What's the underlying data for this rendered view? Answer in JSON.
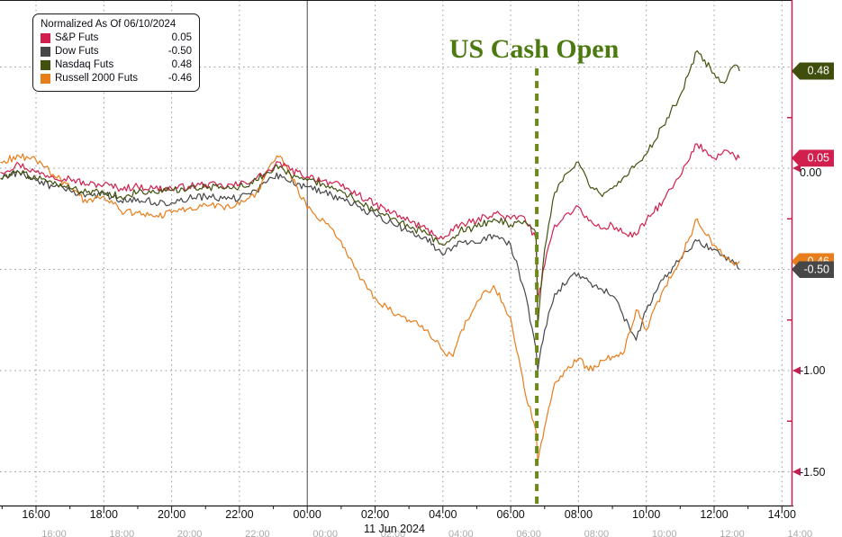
{
  "chart_data": {
    "type": "line",
    "title": "",
    "xlabel": "",
    "ylabel": "",
    "annotation": {
      "text": "US Cash Open",
      "color": "#4c7a10",
      "hour_from_1600": 14.77
    },
    "legend": {
      "title": "Normalized As Of 06/10/2024",
      "position": "top-left"
    },
    "x_axis": {
      "date_label": "11 Jun 2024",
      "session_break": {
        "label": "00:00",
        "hour_from_1600": 8
      },
      "ticks": [
        {
          "label": "16:00",
          "hour": 0
        },
        {
          "label": "18:00",
          "hour": 2
        },
        {
          "label": "20:00",
          "hour": 4
        },
        {
          "label": "22:00",
          "hour": 6
        },
        {
          "label": "00:00",
          "hour": 8
        },
        {
          "label": "02:00",
          "hour": 10
        },
        {
          "label": "04:00",
          "hour": 12
        },
        {
          "label": "06:00",
          "hour": 14
        },
        {
          "label": "08:00",
          "hour": 16
        },
        {
          "label": "10:00",
          "hour": 18
        },
        {
          "label": "12:00",
          "hour": 20
        },
        {
          "label": "14:00",
          "hour": 22
        }
      ],
      "range_hours": [
        -1.06,
        23.7
      ]
    },
    "y_axis": {
      "side": "right",
      "ylim": [
        -1.66,
        0.83
      ],
      "gridline_values": [
        0.5,
        0.0,
        -0.5,
        -1.0,
        -1.5
      ],
      "labeled_ticks": [
        {
          "label": "0.00",
          "value": 0.0
        },
        {
          "label": "-1.00",
          "value": -1.0
        },
        {
          "label": "-1.50",
          "value": -1.5
        }
      ],
      "minor_tick_values": [
        0.25,
        -0.25,
        -0.75,
        -1.25
      ],
      "axis_color": "#c41e4f"
    },
    "last_value_badges": [
      {
        "text": "0.48",
        "value": 0.48,
        "color": "#3f4e0c",
        "z": 3
      },
      {
        "text": "0.05",
        "value": 0.05,
        "color": "#d1204e",
        "z": 3
      },
      {
        "text": "-0.46",
        "value": -0.46,
        "color": "#e87d1b",
        "z": 1
      },
      {
        "text": "-0.50",
        "value": -0.5,
        "color": "#474747",
        "z": 2
      }
    ],
    "hours_from_1600": [
      -1.05,
      -0.5,
      0,
      0.5,
      1,
      1.5,
      2,
      2.5,
      3,
      3.5,
      4,
      4.5,
      5,
      5.5,
      6,
      6.5,
      7,
      7.2,
      7.5,
      8,
      8.5,
      9,
      9.5,
      10,
      10.5,
      11,
      11.5,
      12,
      12.3,
      12.5,
      13,
      13.5,
      14,
      14.4,
      14.75,
      14.8,
      15,
      15.3,
      15.7,
      16,
      16.3,
      16.7,
      17,
      17.3,
      17.7,
      18,
      18.5,
      19,
      19.5,
      20,
      20.3,
      20.6,
      20.75
    ],
    "series": [
      {
        "name": "S&P Futs",
        "display_value": "0.05",
        "color": "#d1204e",
        "values": [
          -0.02,
          0.02,
          -0.02,
          -0.04,
          -0.05,
          -0.08,
          -0.08,
          -0.1,
          -0.09,
          -0.1,
          -0.1,
          -0.09,
          -0.08,
          -0.09,
          -0.08,
          -0.05,
          0.0,
          0.03,
          -0.01,
          -0.04,
          -0.06,
          -0.09,
          -0.13,
          -0.18,
          -0.22,
          -0.26,
          -0.3,
          -0.35,
          -0.31,
          -0.28,
          -0.26,
          -0.22,
          -0.25,
          -0.24,
          -0.35,
          -0.66,
          -0.48,
          -0.28,
          -0.22,
          -0.19,
          -0.26,
          -0.3,
          -0.28,
          -0.32,
          -0.33,
          -0.26,
          -0.16,
          -0.04,
          0.12,
          0.05,
          0.09,
          0.06,
          0.05
        ]
      },
      {
        "name": "Dow Futs",
        "display_value": "-0.50",
        "color": "#474747",
        "values": [
          -0.05,
          -0.02,
          -0.06,
          -0.09,
          -0.11,
          -0.13,
          -0.13,
          -0.16,
          -0.15,
          -0.17,
          -0.17,
          -0.15,
          -0.14,
          -0.15,
          -0.15,
          -0.11,
          -0.05,
          -0.03,
          -0.07,
          -0.09,
          -0.12,
          -0.15,
          -0.19,
          -0.23,
          -0.27,
          -0.31,
          -0.34,
          -0.43,
          -0.39,
          -0.36,
          -0.37,
          -0.33,
          -0.38,
          -0.6,
          -0.9,
          -1.0,
          -0.8,
          -0.62,
          -0.55,
          -0.52,
          -0.56,
          -0.6,
          -0.63,
          -0.72,
          -0.85,
          -0.7,
          -0.55,
          -0.45,
          -0.36,
          -0.4,
          -0.43,
          -0.47,
          -0.5
        ]
      },
      {
        "name": "Nasdaq Futs",
        "display_value": "0.48",
        "color": "#42520e",
        "values": [
          -0.05,
          -0.02,
          -0.05,
          -0.08,
          -0.1,
          -0.12,
          -0.12,
          -0.14,
          -0.12,
          -0.12,
          -0.11,
          -0.1,
          -0.09,
          -0.1,
          -0.09,
          -0.06,
          -0.01,
          0.01,
          -0.03,
          -0.06,
          -0.08,
          -0.11,
          -0.16,
          -0.21,
          -0.25,
          -0.29,
          -0.32,
          -0.38,
          -0.34,
          -0.31,
          -0.29,
          -0.25,
          -0.28,
          -0.26,
          -0.32,
          -0.78,
          -0.4,
          -0.12,
          -0.02,
          0.03,
          -0.08,
          -0.14,
          -0.1,
          -0.05,
          0.02,
          0.07,
          0.21,
          0.36,
          0.58,
          0.47,
          0.42,
          0.51,
          0.48
        ]
      },
      {
        "name": "Russell 2000 Futs",
        "display_value": "-0.46",
        "color": "#e87d1b",
        "values": [
          0.03,
          0.06,
          0.04,
          -0.03,
          -0.1,
          -0.17,
          -0.14,
          -0.21,
          -0.22,
          -0.24,
          -0.22,
          -0.2,
          -0.18,
          -0.19,
          -0.18,
          -0.12,
          0.03,
          0.06,
          -0.03,
          -0.2,
          -0.26,
          -0.36,
          -0.52,
          -0.64,
          -0.71,
          -0.75,
          -0.8,
          -0.9,
          -0.93,
          -0.82,
          -0.66,
          -0.58,
          -0.74,
          -1.09,
          -1.3,
          -1.45,
          -1.28,
          -1.06,
          -0.98,
          -0.94,
          -1.0,
          -0.95,
          -0.93,
          -0.92,
          -0.7,
          -0.8,
          -0.6,
          -0.45,
          -0.25,
          -0.38,
          -0.44,
          -0.48,
          -0.46
        ]
      }
    ],
    "grid": "dotted",
    "background": "#ffffff"
  }
}
